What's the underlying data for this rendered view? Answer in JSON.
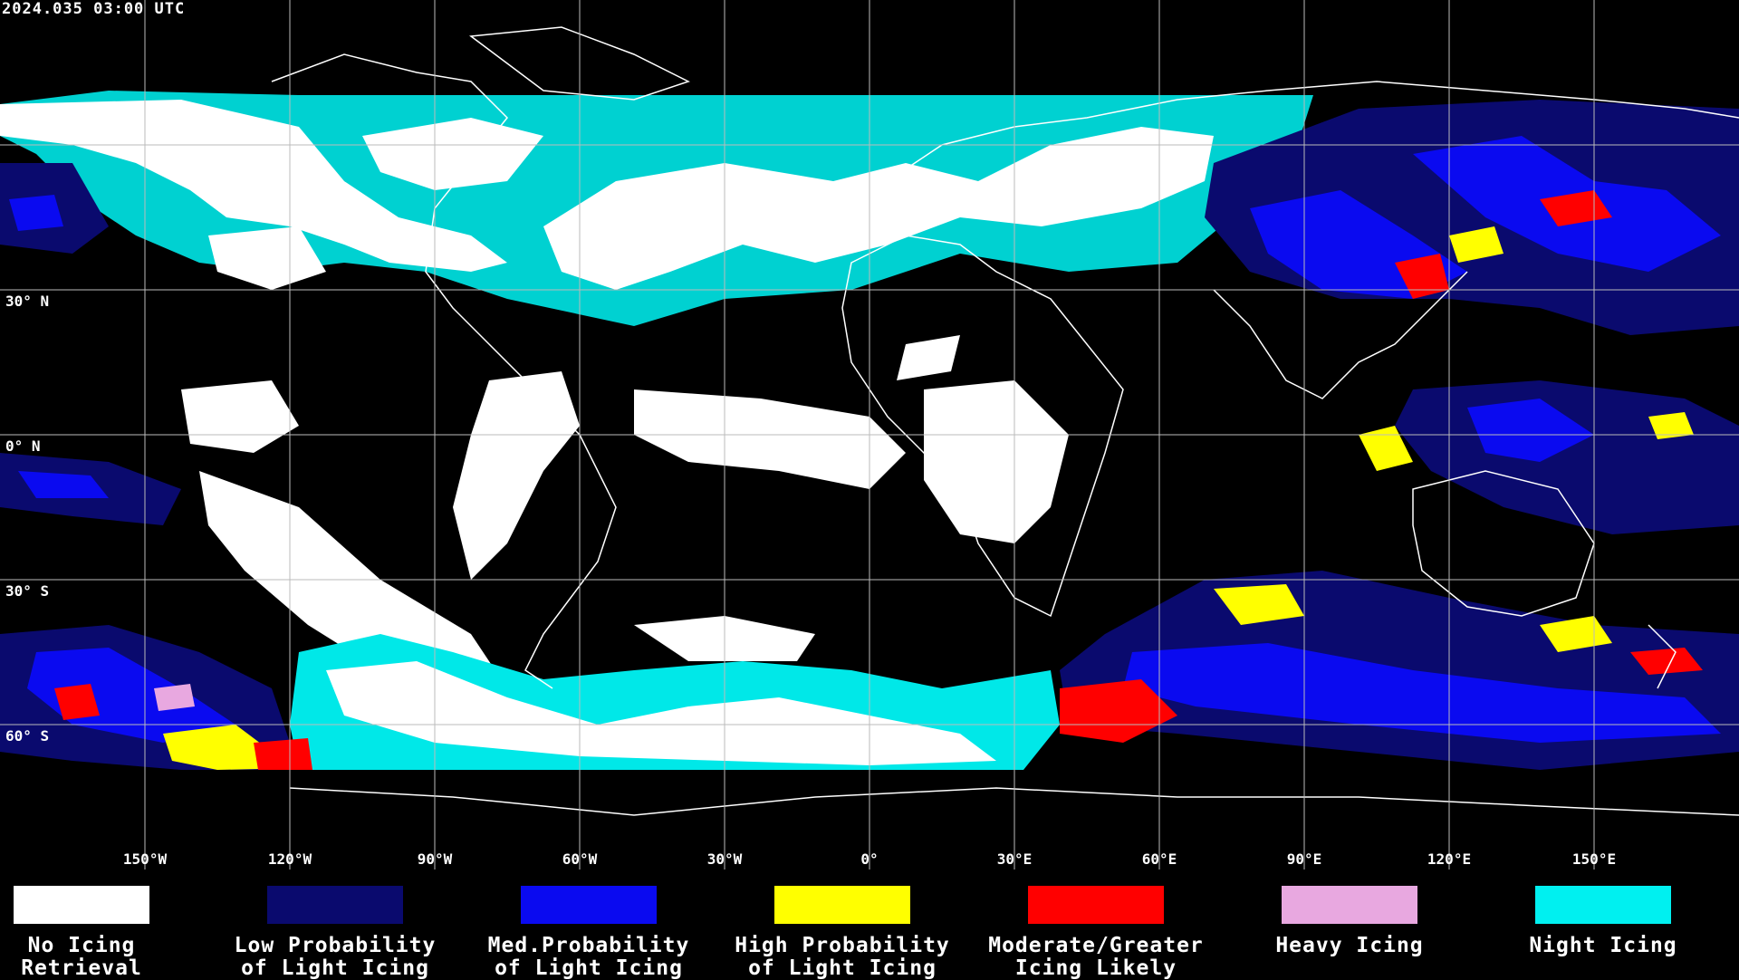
{
  "timestamp": "2024.035 03:00 UTC",
  "map": {
    "projection": "equirectangular",
    "lat_labels": [
      "30° N",
      "0° N",
      "30° S",
      "60° S"
    ],
    "lat_values": [
      30,
      0,
      -30,
      -60
    ],
    "lon_labels": [
      "150°W",
      "120°W",
      "90°W",
      "60°W",
      "30°W",
      "0°",
      "30°E",
      "60°E",
      "90°E",
      "120°E",
      "150°E"
    ],
    "lon_values": [
      -150,
      -120,
      -90,
      -60,
      -30,
      0,
      30,
      60,
      90,
      120,
      150
    ],
    "grid": true,
    "grid_color": "#bbbbbb",
    "background": "#000000",
    "coastline_color": "#ffffff"
  },
  "legend": [
    {
      "label": "No Icing\nRetrieval",
      "color": "#ffffff"
    },
    {
      "label": "Low Probability\nof Light Icing",
      "color": "#0a0a6e"
    },
    {
      "label": "Med.Probability\nof Light Icing",
      "color": "#0a0af0"
    },
    {
      "label": "High Probability\nof Light Icing",
      "color": "#ffff00"
    },
    {
      "label": "Moderate/Greater\nIcing Likely",
      "color": "#ff0000"
    },
    {
      "label": "Heavy Icing",
      "color": "#e8a8e0"
    },
    {
      "label": "Night Icing",
      "color": "#00f0f0"
    }
  ]
}
